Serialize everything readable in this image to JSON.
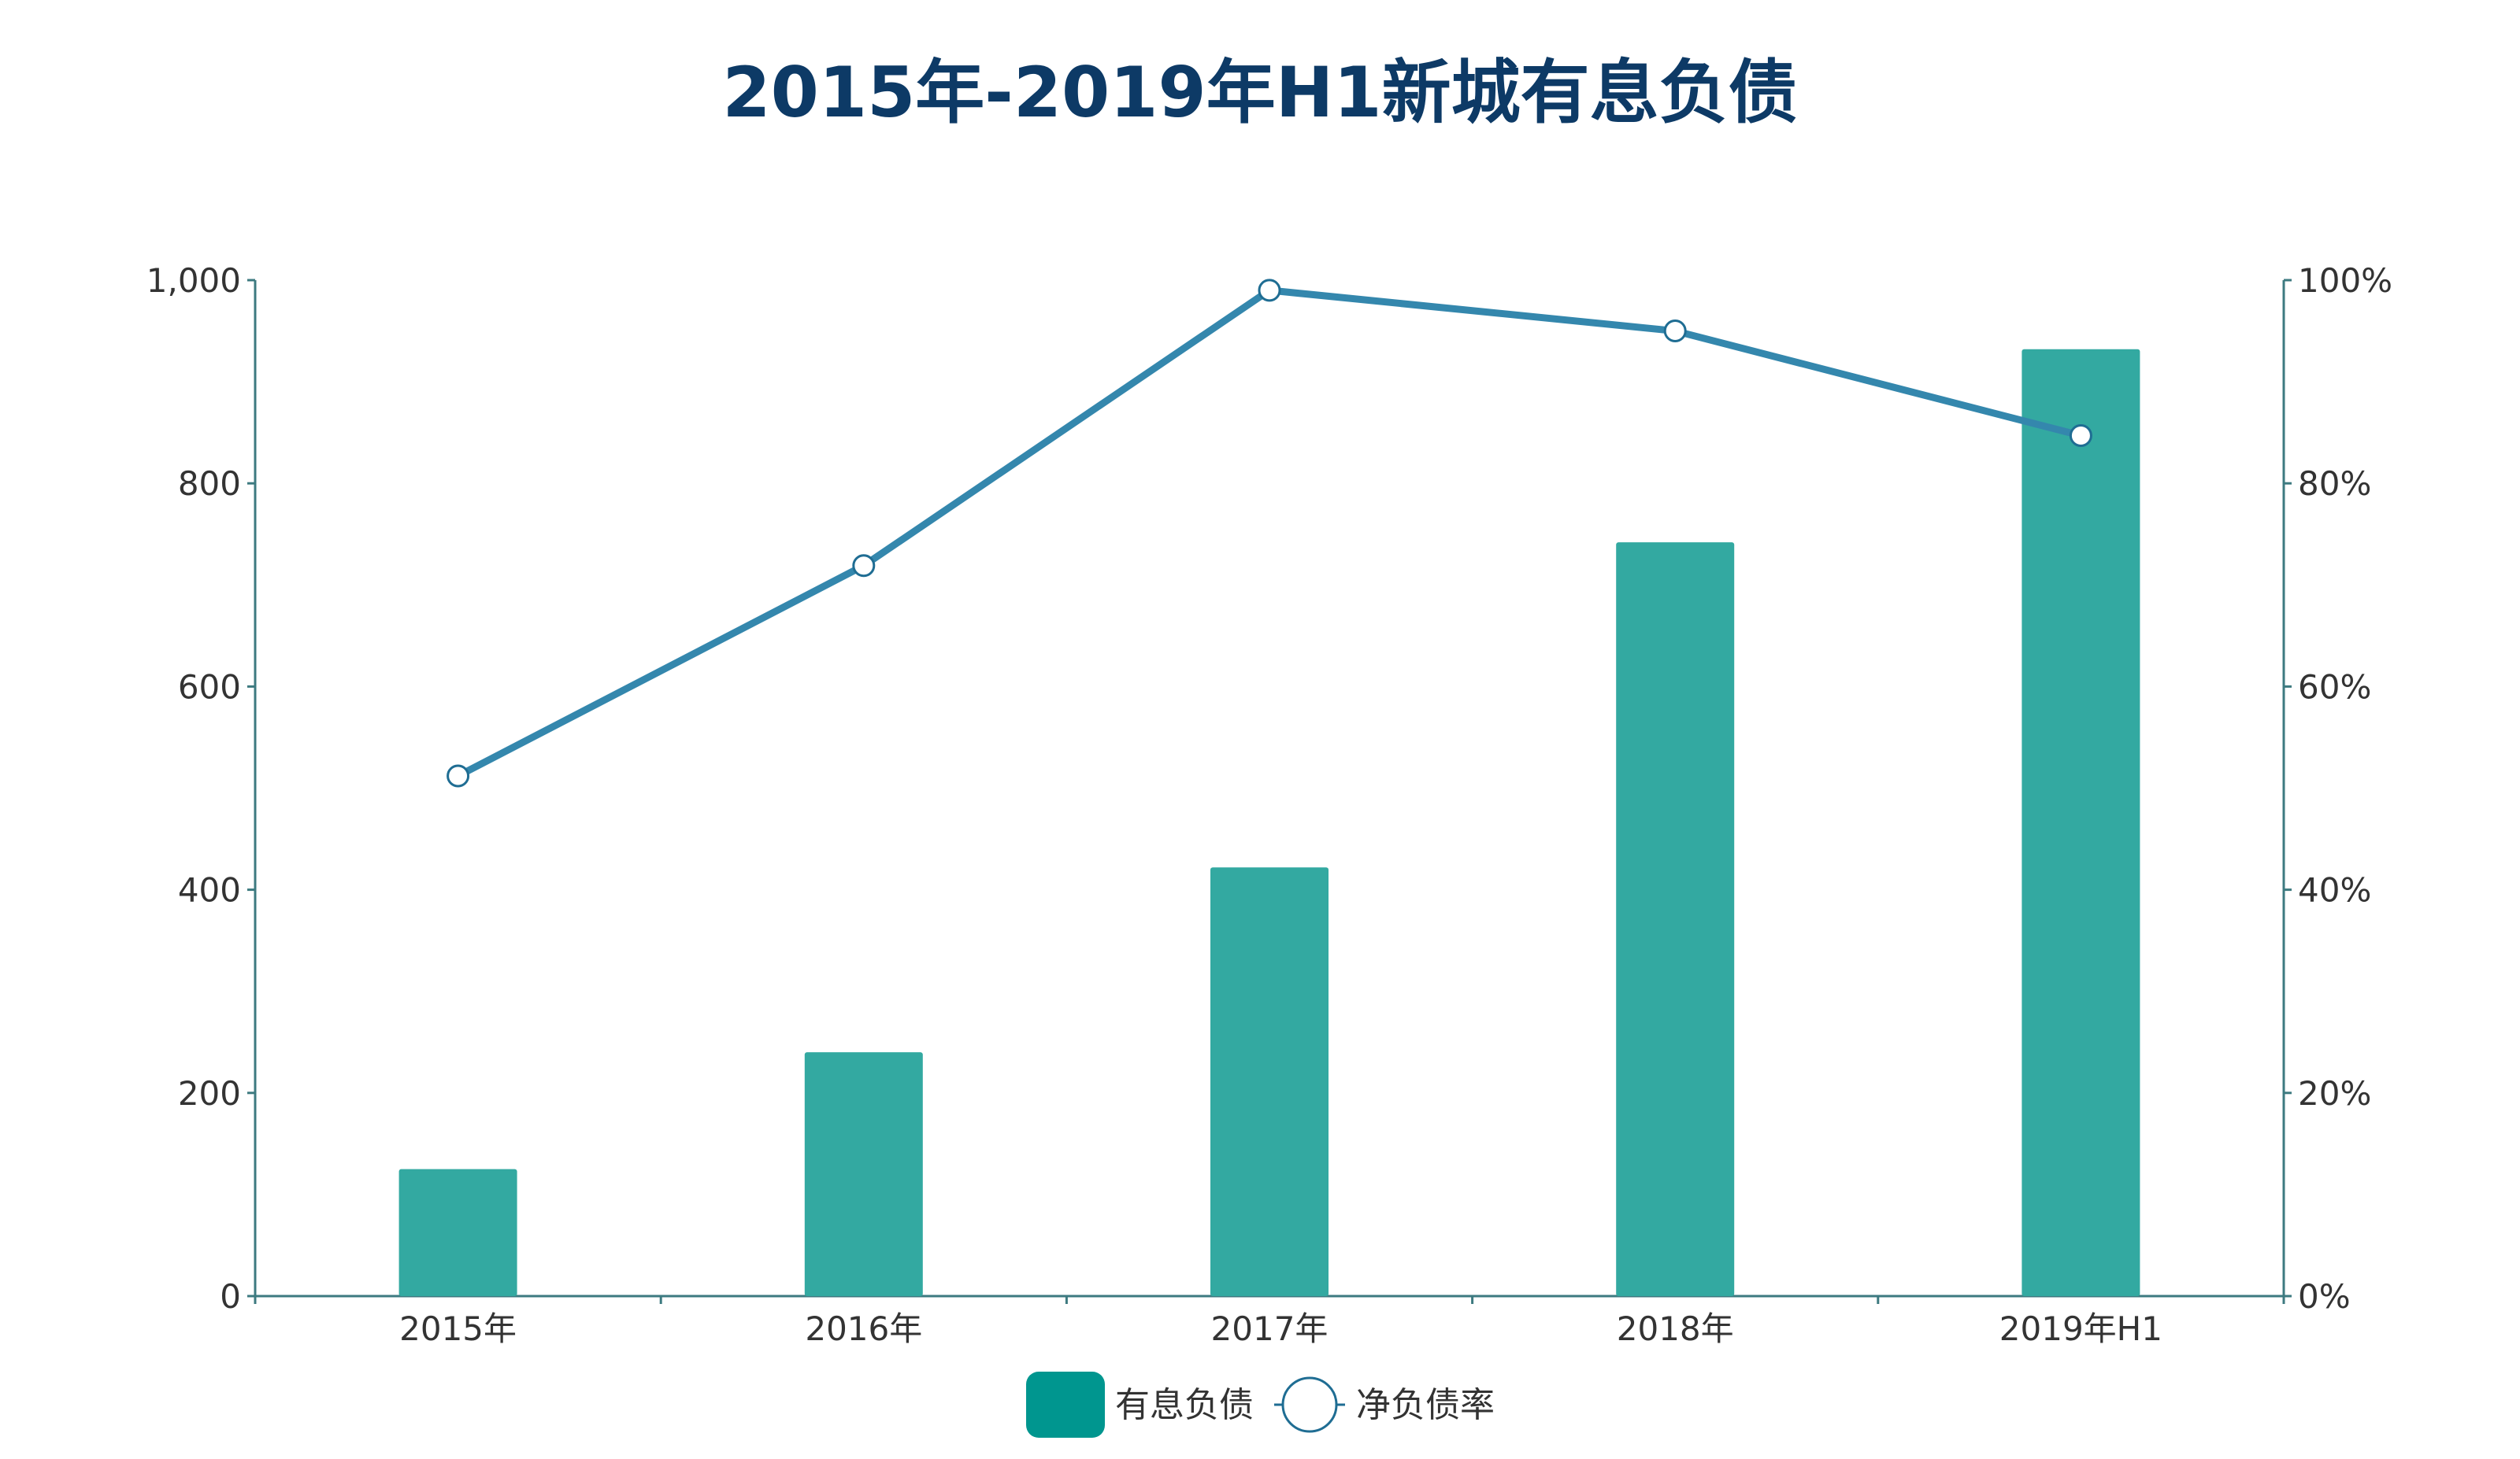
{
  "chart_data": {
    "type": "bar",
    "title": "2015年-2019年H1新城有息负债",
    "categories": [
      "2015年",
      "2016年",
      "2017年",
      "2018年",
      "2019年H1"
    ],
    "series": [
      {
        "name": "有息负债",
        "type": "bar",
        "axis": "left",
        "values": [
          125,
          240,
          422,
          742,
          932
        ],
        "color": "#33a9a1"
      },
      {
        "name": "净负债率",
        "type": "line",
        "axis": "right",
        "values": [
          0.512,
          0.719,
          0.99,
          0.95,
          0.847
        ],
        "color": "#3487ad"
      }
    ],
    "y_left": {
      "min": 0,
      "max": 1000,
      "ticks": [
        0,
        200,
        400,
        600,
        800,
        1000
      ],
      "tick_labels": [
        "0",
        "200",
        "400",
        "600",
        "800",
        "1,000"
      ]
    },
    "y_right": {
      "min": 0,
      "max": 1,
      "ticks": [
        0,
        0.2,
        0.4,
        0.6,
        0.8,
        1.0
      ],
      "tick_labels": [
        "0%",
        "20%",
        "40%",
        "60%",
        "80%",
        "100%"
      ]
    },
    "xlabel": "",
    "ylabel": "",
    "grid": false,
    "legend_position": "bottom-center",
    "colors": {
      "title": "#0d3a66",
      "axis": "#3d7a80",
      "bar": "#33a9a1",
      "legend_bar": "#00968f",
      "line": "#3487ad",
      "marker_stroke": "#1f6d93",
      "marker_fill": "#ffffff",
      "text": "#333333"
    }
  }
}
